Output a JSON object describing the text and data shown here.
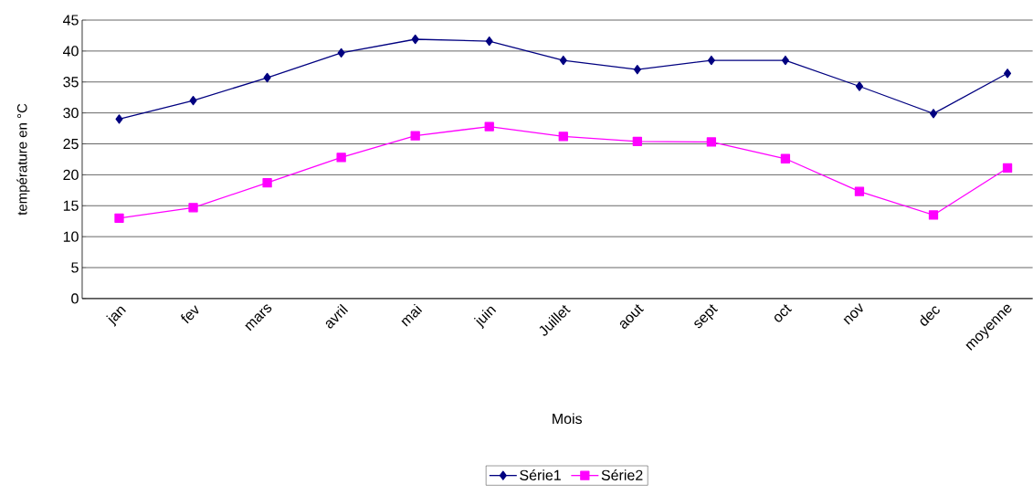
{
  "chart_data": {
    "type": "line",
    "xlabel": "Mois",
    "ylabel": "température en °C",
    "categories": [
      "jan",
      "fev",
      "mars",
      "avril",
      "mai",
      "juin",
      "Juillet",
      "aout",
      "sept",
      "oct",
      "nov",
      "dec",
      "moyenne"
    ],
    "series": [
      {
        "name": "Série1",
        "color": "#000080",
        "marker": "diamond",
        "values": [
          29.0,
          32.0,
          35.7,
          39.7,
          41.9,
          41.6,
          38.5,
          37.0,
          38.5,
          38.5,
          34.3,
          29.9,
          36.4
        ]
      },
      {
        "name": "Série2",
        "color": "#ff00ff",
        "marker": "square",
        "values": [
          13.0,
          14.7,
          18.7,
          22.8,
          26.3,
          27.8,
          26.2,
          25.4,
          25.3,
          22.6,
          17.3,
          13.5,
          21.1
        ]
      }
    ],
    "ylim": [
      0,
      45
    ],
    "yticks": [
      0,
      5,
      10,
      15,
      20,
      25,
      30,
      35,
      40,
      45
    ],
    "grid": "y",
    "legend": "bottom",
    "line_style": "solid"
  }
}
